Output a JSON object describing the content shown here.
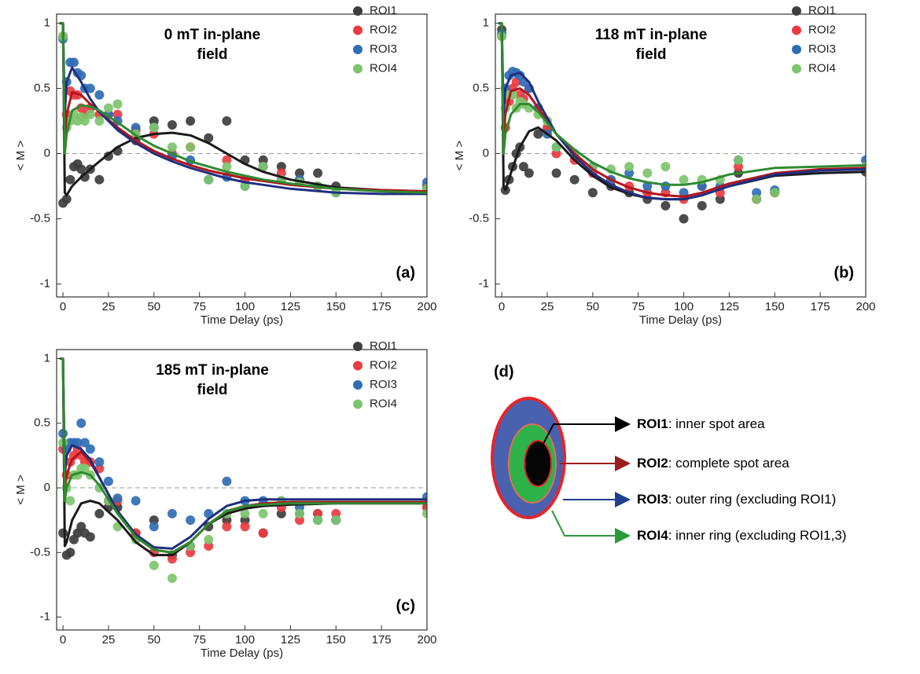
{
  "chart_data": [
    {
      "type": "scatter",
      "title": [
        "0 mT in-plane",
        "field"
      ],
      "panel_label": "(a)",
      "xlabel": "Time Delay (ps)",
      "ylabel": "< M >",
      "xlim": [
        -3.5,
        200
      ],
      "ylim": [
        -1.1,
        1.07
      ],
      "xticks": [
        0,
        25,
        50,
        75,
        100,
        125,
        150,
        175,
        200
      ],
      "yticks": [
        -1,
        -0.5,
        0,
        0.5,
        1
      ],
      "reference_line": 0,
      "x": [
        0,
        2,
        4,
        6,
        8,
        10,
        12,
        15,
        20,
        25,
        30,
        40,
        50,
        60,
        70,
        80,
        90,
        100,
        110,
        120,
        130,
        140,
        150,
        200
      ],
      "fit_x": [
        -2,
        0,
        1,
        2,
        5,
        10,
        15,
        20,
        30,
        40,
        50,
        60,
        70,
        80,
        90,
        100,
        110,
        125,
        150,
        175,
        200
      ],
      "series": [
        {
          "name": "ROI1",
          "color": "#3d3d3d",
          "fit_color": "#1a1a1a",
          "values": [
            -0.38,
            -0.35,
            -0.2,
            -0.1,
            -0.08,
            -0.12,
            -0.18,
            -0.12,
            -0.2,
            -0.02,
            0.02,
            0.1,
            0.25,
            0.22,
            0.25,
            0.12,
            0.25,
            -0.05,
            -0.05,
            -0.1,
            -0.15,
            -0.15,
            -0.25,
            -0.25
          ],
          "fit_values": [
            1,
            1,
            -0.3,
            -0.32,
            -0.25,
            -0.18,
            -0.12,
            -0.06,
            0.05,
            0.12,
            0.15,
            0.16,
            0.14,
            0.08,
            0.0,
            -0.08,
            -0.14,
            -0.2,
            -0.26,
            -0.28,
            -0.29
          ]
        },
        {
          "name": "ROI2",
          "color": "#ea3b40",
          "fit_color": "#b3151c",
          "values": [
            0.9,
            0.3,
            0.48,
            0.45,
            0.45,
            0.35,
            0.3,
            0.35,
            0.3,
            0.3,
            0.3,
            0.18,
            0.15,
            0.0,
            0.05,
            -0.2,
            -0.05,
            -0.2,
            -0.1,
            -0.15,
            -0.2,
            -0.25,
            -0.3,
            -0.27
          ],
          "fit_values": [
            1,
            1,
            0.1,
            0.3,
            0.47,
            0.45,
            0.38,
            0.32,
            0.2,
            0.1,
            0.02,
            -0.04,
            -0.09,
            -0.13,
            -0.16,
            -0.19,
            -0.21,
            -0.24,
            -0.27,
            -0.28,
            -0.29
          ]
        },
        {
          "name": "ROI3",
          "color": "#2f6db5",
          "fit_color": "#1f2f80",
          "values": [
            0.88,
            0.55,
            0.7,
            0.7,
            0.62,
            0.6,
            0.5,
            0.5,
            0.45,
            0.3,
            0.25,
            0.2,
            0.2,
            -0.02,
            -0.05,
            -0.2,
            -0.18,
            -0.25,
            -0.1,
            -0.2,
            -0.2,
            -0.25,
            -0.3,
            -0.22
          ],
          "fit_values": [
            1,
            1,
            0.3,
            0.55,
            0.66,
            0.55,
            0.42,
            0.32,
            0.18,
            0.08,
            0,
            -0.06,
            -0.11,
            -0.15,
            -0.19,
            -0.22,
            -0.24,
            -0.27,
            -0.3,
            -0.31,
            -0.31
          ]
        },
        {
          "name": "ROI4",
          "color": "#7dc46c",
          "fit_color": "#2f8a2f",
          "values": [
            0.9,
            0.2,
            0.25,
            0.3,
            0.25,
            0.28,
            0.25,
            0.3,
            0.25,
            0.35,
            0.38,
            0.15,
            0.2,
            0.05,
            0.05,
            -0.2,
            -0.1,
            -0.25,
            -0.1,
            -0.2,
            -0.22,
            -0.25,
            -0.3,
            -0.27
          ],
          "fit_values": [
            1,
            1,
            0,
            0.15,
            0.33,
            0.37,
            0.36,
            0.33,
            0.24,
            0.14,
            0.06,
            0,
            -0.06,
            -0.1,
            -0.14,
            -0.17,
            -0.2,
            -0.23,
            -0.27,
            -0.29,
            -0.3
          ]
        }
      ]
    },
    {
      "type": "scatter",
      "title": [
        "118 mT in-plane",
        "field"
      ],
      "panel_label": "(b)",
      "xlabel": "Time Delay (ps)",
      "ylabel": "< M >",
      "xlim": [
        -3.5,
        200
      ],
      "ylim": [
        -1.1,
        1.07
      ],
      "xticks": [
        0,
        25,
        50,
        75,
        100,
        125,
        150,
        175,
        200
      ],
      "yticks": [
        -1,
        -0.5,
        0,
        0.5,
        1
      ],
      "reference_line": 0,
      "x": [
        0,
        2,
        4,
        6,
        8,
        10,
        12,
        15,
        20,
        25,
        30,
        40,
        50,
        60,
        70,
        80,
        90,
        100,
        110,
        120,
        130,
        140,
        150,
        200
      ],
      "fit_x": [
        -2,
        0,
        1,
        2,
        5,
        10,
        15,
        20,
        30,
        40,
        50,
        60,
        70,
        80,
        90,
        100,
        110,
        125,
        150,
        175,
        200
      ],
      "series": [
        {
          "name": "ROI1",
          "color": "#3d3d3d",
          "fit_color": "#1a1a1a",
          "values": [
            0.95,
            -0.28,
            -0.2,
            -0.1,
            0.0,
            0.05,
            -0.1,
            -0.15,
            0.15,
            0.18,
            -0.15,
            -0.2,
            -0.3,
            -0.25,
            -0.3,
            -0.35,
            -0.4,
            -0.5,
            -0.4,
            -0.35,
            -0.15,
            -0.35,
            -0.3,
            -0.14
          ],
          "fit_values": [
            1,
            1,
            -0.25,
            -0.28,
            -0.15,
            0.05,
            0.17,
            0.2,
            0.1,
            -0.05,
            -0.17,
            -0.26,
            -0.31,
            -0.34,
            -0.35,
            -0.35,
            -0.32,
            -0.25,
            -0.17,
            -0.15,
            -0.14
          ]
        },
        {
          "name": "ROI2",
          "color": "#ea3b40",
          "fit_color": "#b3151c",
          "values": [
            0.9,
            0.2,
            0.4,
            0.5,
            0.55,
            0.45,
            0.42,
            0.5,
            0.35,
            0.2,
            0.0,
            -0.05,
            -0.15,
            -0.2,
            -0.25,
            -0.3,
            -0.3,
            -0.35,
            -0.25,
            -0.3,
            -0.1,
            -0.35,
            -0.3,
            -0.12
          ],
          "fit_values": [
            1,
            1,
            0.1,
            0.3,
            0.48,
            0.5,
            0.45,
            0.35,
            0.15,
            0.0,
            -0.12,
            -0.2,
            -0.26,
            -0.3,
            -0.32,
            -0.33,
            -0.3,
            -0.23,
            -0.15,
            -0.12,
            -0.11
          ]
        },
        {
          "name": "ROI3",
          "color": "#2f6db5",
          "fit_color": "#1f2f80",
          "values": [
            0.92,
            0.5,
            0.6,
            0.63,
            0.62,
            0.6,
            0.55,
            0.5,
            0.35,
            0.15,
            0.05,
            0.0,
            -0.1,
            -0.2,
            -0.15,
            -0.25,
            -0.25,
            -0.3,
            -0.25,
            -0.25,
            -0.05,
            -0.3,
            -0.28,
            -0.05
          ],
          "fit_values": [
            1,
            1,
            0.3,
            0.5,
            0.6,
            0.62,
            0.55,
            0.4,
            0.15,
            -0.02,
            -0.15,
            -0.24,
            -0.3,
            -0.34,
            -0.35,
            -0.35,
            -0.32,
            -0.25,
            -0.16,
            -0.13,
            -0.12
          ]
        },
        {
          "name": "ROI4",
          "color": "#7dc46c",
          "fit_color": "#2f8a2f",
          "values": [
            0.9,
            0.35,
            0.45,
            0.45,
            0.35,
            0.4,
            0.38,
            0.35,
            0.3,
            0.25,
            0.05,
            0.0,
            -0.1,
            -0.12,
            -0.1,
            -0.15,
            -0.1,
            -0.2,
            -0.2,
            -0.2,
            -0.05,
            -0.35,
            -0.3,
            -0.1
          ],
          "fit_values": [
            1,
            1,
            0,
            0.15,
            0.3,
            0.38,
            0.38,
            0.32,
            0.15,
            0.03,
            -0.07,
            -0.14,
            -0.19,
            -0.22,
            -0.24,
            -0.24,
            -0.22,
            -0.16,
            -0.11,
            -0.1,
            -0.09
          ]
        }
      ]
    },
    {
      "type": "scatter",
      "title": [
        "185 mT in-plane",
        "field"
      ],
      "panel_label": "(c)",
      "xlabel": "Time Delay (ps)",
      "ylabel": "< M >",
      "xlim": [
        -3.5,
        200
      ],
      "ylim": [
        -1.1,
        1.07
      ],
      "xticks": [
        0,
        25,
        50,
        75,
        100,
        125,
        150,
        175,
        200
      ],
      "yticks": [
        -1,
        -0.5,
        0,
        0.5,
        1
      ],
      "reference_line": 0,
      "x": [
        0,
        2,
        4,
        6,
        8,
        10,
        12,
        15,
        20,
        25,
        30,
        40,
        50,
        60,
        70,
        80,
        90,
        100,
        110,
        120,
        130,
        140,
        150,
        200
      ],
      "fit_x": [
        -2,
        0,
        1,
        2,
        5,
        10,
        15,
        20,
        30,
        40,
        50,
        60,
        70,
        80,
        90,
        100,
        110,
        125,
        150,
        175,
        200
      ],
      "series": [
        {
          "name": "ROI1",
          "color": "#3d3d3d",
          "fit_color": "#1a1a1a",
          "values": [
            -0.35,
            -0.52,
            -0.5,
            -0.4,
            -0.35,
            -0.3,
            -0.35,
            -0.38,
            -0.2,
            -0.15,
            -0.15,
            -0.35,
            -0.25,
            -0.52,
            -0.45,
            -0.3,
            -0.25,
            -0.25,
            -0.35,
            -0.2,
            -0.2,
            -0.2,
            -0.25,
            -0.15
          ],
          "fit_values": [
            1,
            1,
            -0.45,
            -0.42,
            -0.25,
            -0.12,
            -0.1,
            -0.12,
            -0.25,
            -0.42,
            -0.52,
            -0.52,
            -0.42,
            -0.28,
            -0.2,
            -0.16,
            -0.14,
            -0.13,
            -0.12,
            -0.12,
            -0.12
          ]
        },
        {
          "name": "ROI2",
          "color": "#ea3b40",
          "fit_color": "#b3151c",
          "values": [
            0.3,
            0.1,
            0.2,
            0.25,
            0.3,
            0.25,
            0.2,
            0.2,
            0.15,
            -0.1,
            -0.1,
            -0.35,
            -0.5,
            -0.55,
            -0.5,
            -0.45,
            -0.3,
            -0.3,
            -0.35,
            -0.15,
            -0.25,
            -0.2,
            -0.2,
            -0.15
          ],
          "fit_values": [
            1,
            1,
            0.0,
            0.1,
            0.22,
            0.28,
            0.2,
            0.08,
            -0.18,
            -0.38,
            -0.48,
            -0.5,
            -0.42,
            -0.28,
            -0.18,
            -0.14,
            -0.12,
            -0.11,
            -0.11,
            -0.11,
            -0.11
          ]
        },
        {
          "name": "ROI3",
          "color": "#2f6db5",
          "fit_color": "#1f2f80",
          "values": [
            0.42,
            0.3,
            0.35,
            0.35,
            0.35,
            0.5,
            0.35,
            0.3,
            0.2,
            0.05,
            -0.08,
            -0.1,
            -0.3,
            -0.2,
            -0.25,
            -0.2,
            0.05,
            -0.1,
            -0.1,
            -0.1,
            -0.15,
            -0.25,
            -0.25,
            -0.07
          ],
          "fit_values": [
            1,
            1,
            0.1,
            0.25,
            0.33,
            0.3,
            0.22,
            0.08,
            -0.18,
            -0.36,
            -0.46,
            -0.47,
            -0.38,
            -0.24,
            -0.14,
            -0.1,
            -0.09,
            -0.09,
            -0.09,
            -0.09,
            -0.09
          ]
        },
        {
          "name": "ROI4",
          "color": "#7dc46c",
          "fit_color": "#2f8a2f",
          "values": [
            0.35,
            0.0,
            -0.1,
            0.1,
            0.1,
            0.15,
            0.15,
            0.1,
            0.0,
            -0.1,
            -0.3,
            -0.4,
            -0.6,
            -0.7,
            -0.45,
            -0.4,
            -0.2,
            -0.2,
            -0.2,
            -0.1,
            -0.2,
            -0.25,
            -0.25,
            -0.2
          ],
          "fit_values": [
            1,
            1,
            -0.1,
            0.0,
            0.1,
            0.12,
            0.1,
            0.02,
            -0.2,
            -0.38,
            -0.48,
            -0.5,
            -0.42,
            -0.28,
            -0.18,
            -0.14,
            -0.13,
            -0.12,
            -0.12,
            -0.12,
            -0.12
          ]
        }
      ]
    }
  ],
  "diagram": {
    "panel_label": "(d)",
    "items": [
      {
        "name": "ROI1",
        "description": ": inner spot area"
      },
      {
        "name": "ROI2",
        "description": ": complete spot area"
      },
      {
        "name": "ROI3",
        "description": ": outer ring (excluding ROI1)"
      },
      {
        "name": "ROI4",
        "description": ": inner ring (excluding ROI1,3)"
      }
    ]
  }
}
